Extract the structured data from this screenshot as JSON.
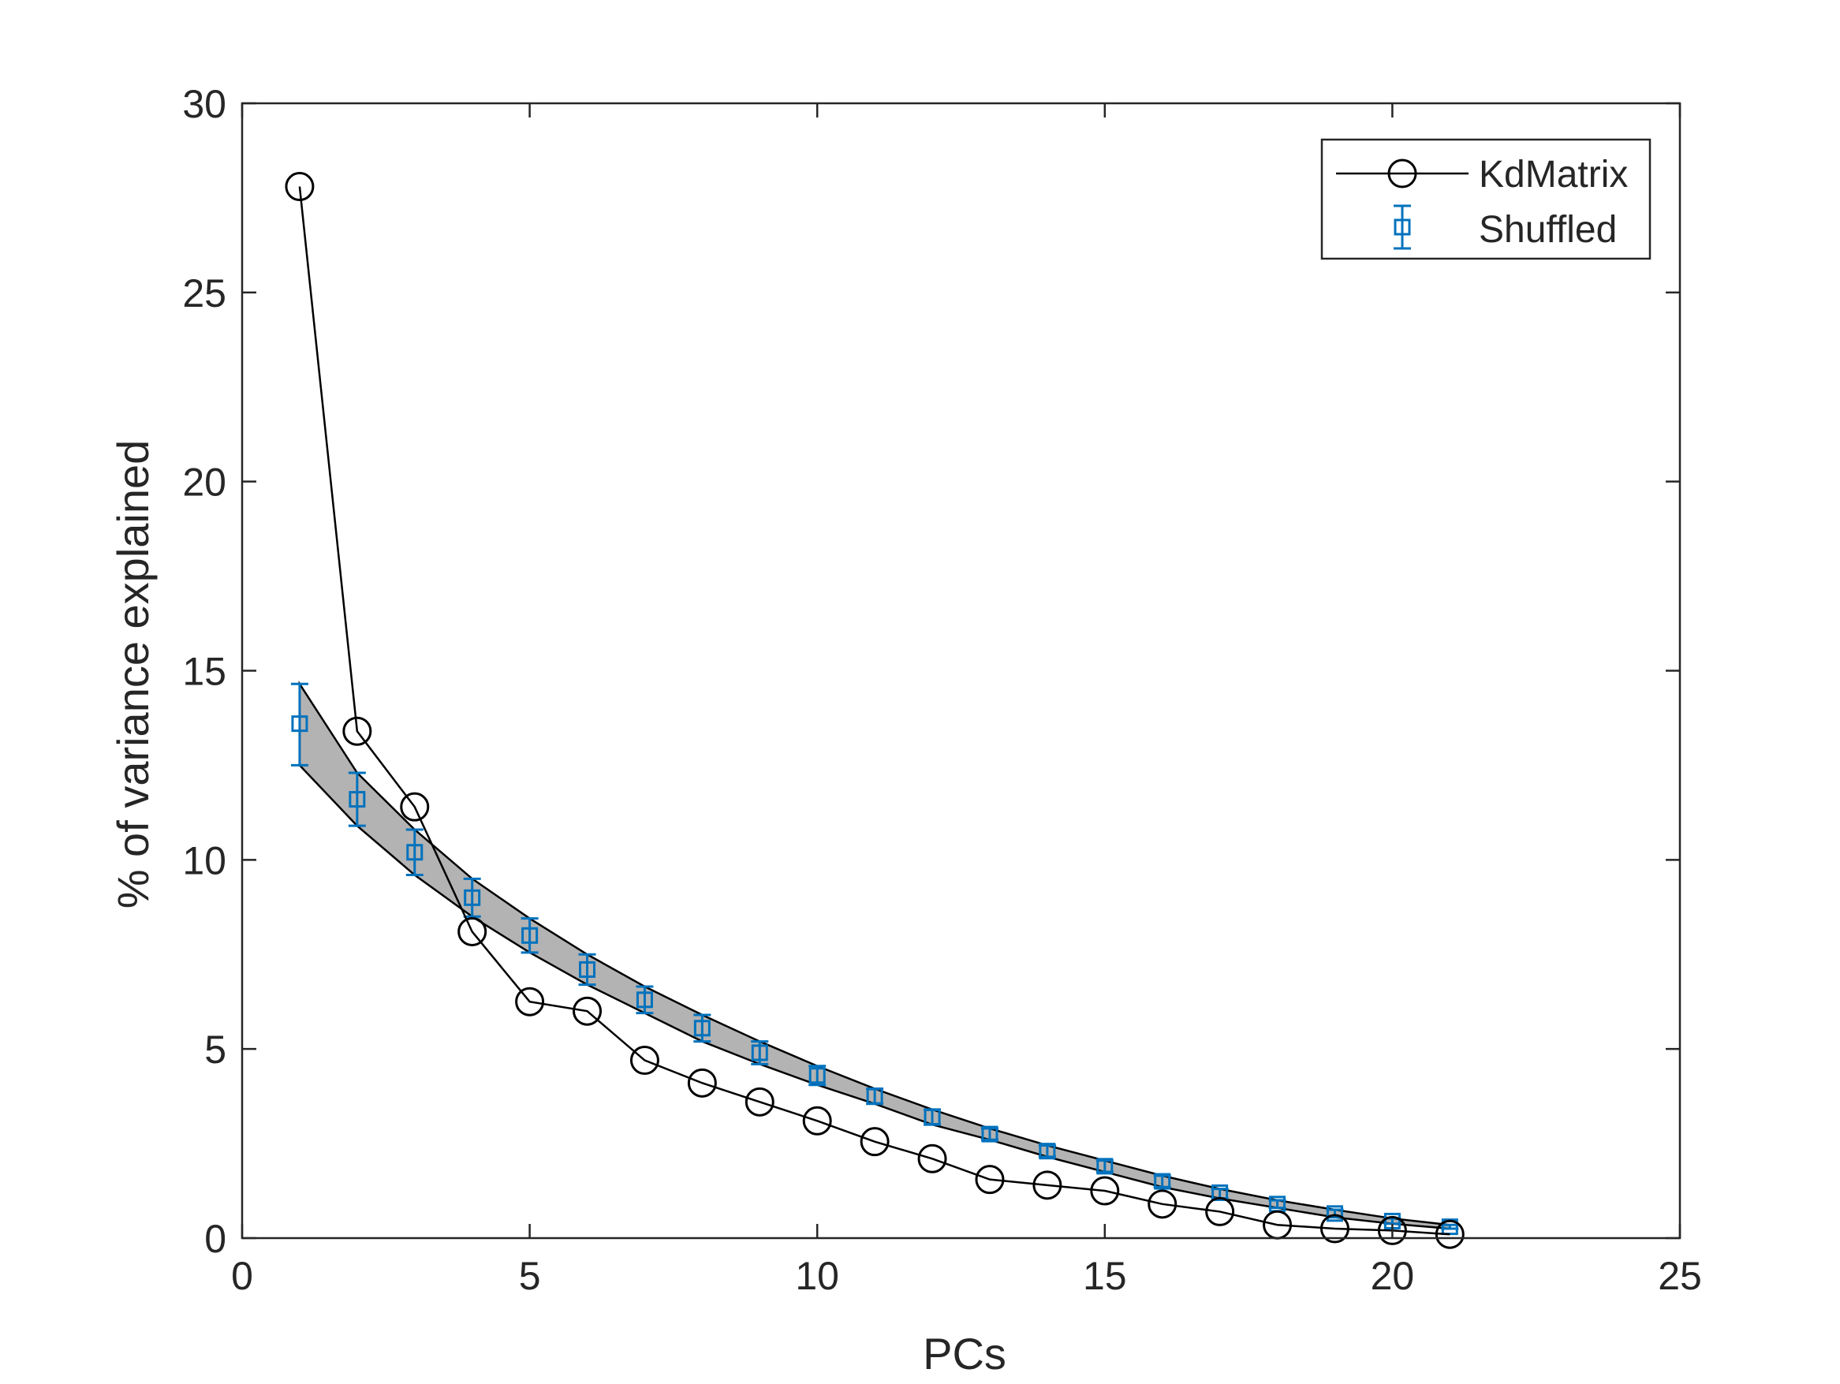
{
  "chart_data": {
    "type": "line",
    "title": "",
    "xlabel": "PCs",
    "ylabel": "% of variance explained",
    "xlim": [
      0,
      25
    ],
    "ylim": [
      0,
      30
    ],
    "xticks": [
      "0",
      "5",
      "10",
      "15",
      "20",
      "25"
    ],
    "yticks": [
      "0",
      "5",
      "10",
      "15",
      "20",
      "25",
      "30"
    ],
    "grid": false,
    "legend_position": "top-right",
    "colors": {
      "kd": "#000000",
      "shuffled": "#0072BD",
      "band_fill": "#B3B3B3",
      "axis": "#262626"
    },
    "series": [
      {
        "name": "KdMatrix",
        "marker": "circle",
        "x": [
          1,
          2,
          3,
          4,
          5,
          6,
          7,
          8,
          9,
          10,
          11,
          12,
          13,
          14,
          15,
          16,
          17,
          18,
          19,
          20,
          21
        ],
        "y": [
          27.8,
          13.4,
          11.4,
          8.1,
          6.25,
          6.0,
          4.7,
          4.1,
          3.6,
          3.1,
          2.55,
          2.1,
          1.55,
          1.4,
          1.25,
          0.9,
          0.7,
          0.35,
          0.25,
          0.2,
          0.1
        ]
      },
      {
        "name": "Shuffled",
        "marker": "square-errorbar",
        "x": [
          1,
          2,
          3,
          4,
          5,
          6,
          7,
          8,
          9,
          10,
          11,
          12,
          13,
          14,
          15,
          16,
          17,
          18,
          19,
          20,
          21
        ],
        "y": [
          13.6,
          11.6,
          10.2,
          9.0,
          8.0,
          7.1,
          6.3,
          5.55,
          4.9,
          4.3,
          3.75,
          3.2,
          2.75,
          2.3,
          1.9,
          1.5,
          1.2,
          0.9,
          0.65,
          0.45,
          0.3
        ],
        "upper": [
          14.65,
          12.3,
          10.8,
          9.5,
          8.45,
          7.5,
          6.65,
          5.9,
          5.2,
          4.55,
          3.95,
          3.4,
          2.9,
          2.45,
          2.05,
          1.65,
          1.3,
          1.0,
          0.75,
          0.52,
          0.35
        ],
        "lower": [
          12.5,
          10.9,
          9.6,
          8.5,
          7.55,
          6.7,
          5.95,
          5.2,
          4.6,
          4.05,
          3.55,
          3.0,
          2.6,
          2.15,
          1.75,
          1.35,
          1.05,
          0.8,
          0.55,
          0.38,
          0.25
        ]
      }
    ]
  }
}
